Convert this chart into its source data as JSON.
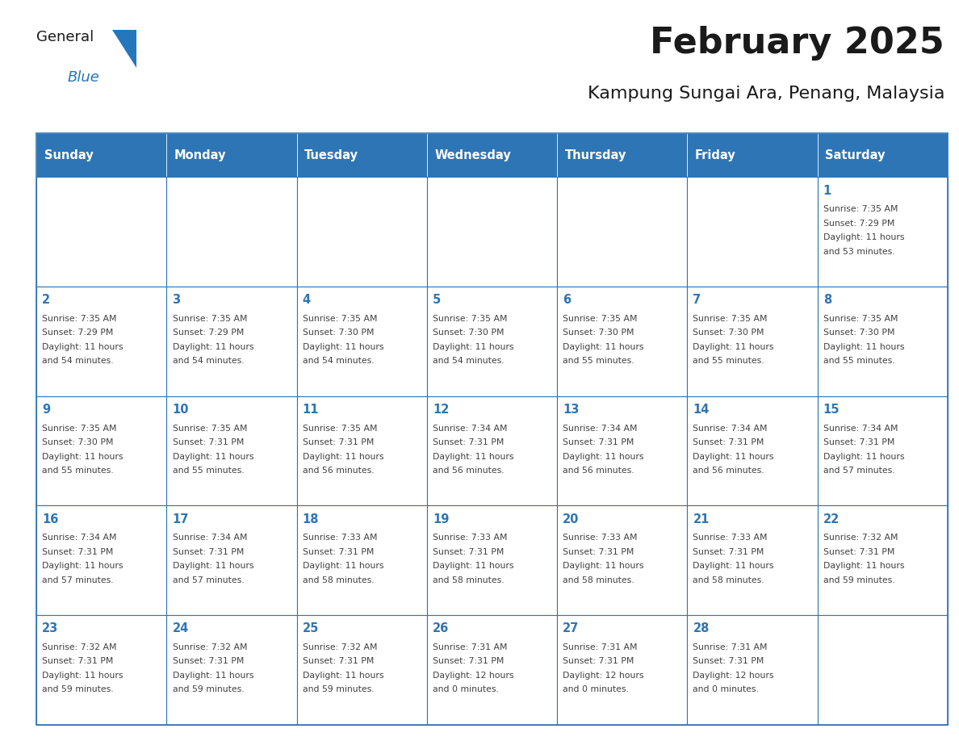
{
  "title": "February 2025",
  "subtitle": "Kampung Sungai Ara, Penang, Malaysia",
  "title_fontsize": 32,
  "subtitle_fontsize": 16,
  "header_bg_color": "#2E75B6",
  "header_text_color": "#FFFFFF",
  "cell_border_color": "#2E75B6",
  "day_number_color": "#2E75B6",
  "detail_text_color": "#404040",
  "days_of_week": [
    "Sunday",
    "Monday",
    "Tuesday",
    "Wednesday",
    "Thursday",
    "Friday",
    "Saturday"
  ],
  "logo_general_color": "#1a1a1a",
  "logo_blue_color": "#2477BD",
  "weeks": [
    [
      {
        "day": "",
        "sunrise": "",
        "sunset": "",
        "daylight1": "",
        "daylight2": ""
      },
      {
        "day": "",
        "sunrise": "",
        "sunset": "",
        "daylight1": "",
        "daylight2": ""
      },
      {
        "day": "",
        "sunrise": "",
        "sunset": "",
        "daylight1": "",
        "daylight2": ""
      },
      {
        "day": "",
        "sunrise": "",
        "sunset": "",
        "daylight1": "",
        "daylight2": ""
      },
      {
        "day": "",
        "sunrise": "",
        "sunset": "",
        "daylight1": "",
        "daylight2": ""
      },
      {
        "day": "",
        "sunrise": "",
        "sunset": "",
        "daylight1": "",
        "daylight2": ""
      },
      {
        "day": "1",
        "sunrise": "7:35 AM",
        "sunset": "7:29 PM",
        "daylight1": "11 hours",
        "daylight2": "and 53 minutes."
      }
    ],
    [
      {
        "day": "2",
        "sunrise": "7:35 AM",
        "sunset": "7:29 PM",
        "daylight1": "11 hours",
        "daylight2": "and 54 minutes."
      },
      {
        "day": "3",
        "sunrise": "7:35 AM",
        "sunset": "7:29 PM",
        "daylight1": "11 hours",
        "daylight2": "and 54 minutes."
      },
      {
        "day": "4",
        "sunrise": "7:35 AM",
        "sunset": "7:30 PM",
        "daylight1": "11 hours",
        "daylight2": "and 54 minutes."
      },
      {
        "day": "5",
        "sunrise": "7:35 AM",
        "sunset": "7:30 PM",
        "daylight1": "11 hours",
        "daylight2": "and 54 minutes."
      },
      {
        "day": "6",
        "sunrise": "7:35 AM",
        "sunset": "7:30 PM",
        "daylight1": "11 hours",
        "daylight2": "and 55 minutes."
      },
      {
        "day": "7",
        "sunrise": "7:35 AM",
        "sunset": "7:30 PM",
        "daylight1": "11 hours",
        "daylight2": "and 55 minutes."
      },
      {
        "day": "8",
        "sunrise": "7:35 AM",
        "sunset": "7:30 PM",
        "daylight1": "11 hours",
        "daylight2": "and 55 minutes."
      }
    ],
    [
      {
        "day": "9",
        "sunrise": "7:35 AM",
        "sunset": "7:30 PM",
        "daylight1": "11 hours",
        "daylight2": "and 55 minutes."
      },
      {
        "day": "10",
        "sunrise": "7:35 AM",
        "sunset": "7:31 PM",
        "daylight1": "11 hours",
        "daylight2": "and 55 minutes."
      },
      {
        "day": "11",
        "sunrise": "7:35 AM",
        "sunset": "7:31 PM",
        "daylight1": "11 hours",
        "daylight2": "and 56 minutes."
      },
      {
        "day": "12",
        "sunrise": "7:34 AM",
        "sunset": "7:31 PM",
        "daylight1": "11 hours",
        "daylight2": "and 56 minutes."
      },
      {
        "day": "13",
        "sunrise": "7:34 AM",
        "sunset": "7:31 PM",
        "daylight1": "11 hours",
        "daylight2": "and 56 minutes."
      },
      {
        "day": "14",
        "sunrise": "7:34 AM",
        "sunset": "7:31 PM",
        "daylight1": "11 hours",
        "daylight2": "and 56 minutes."
      },
      {
        "day": "15",
        "sunrise": "7:34 AM",
        "sunset": "7:31 PM",
        "daylight1": "11 hours",
        "daylight2": "and 57 minutes."
      }
    ],
    [
      {
        "day": "16",
        "sunrise": "7:34 AM",
        "sunset": "7:31 PM",
        "daylight1": "11 hours",
        "daylight2": "and 57 minutes."
      },
      {
        "day": "17",
        "sunrise": "7:34 AM",
        "sunset": "7:31 PM",
        "daylight1": "11 hours",
        "daylight2": "and 57 minutes."
      },
      {
        "day": "18",
        "sunrise": "7:33 AM",
        "sunset": "7:31 PM",
        "daylight1": "11 hours",
        "daylight2": "and 58 minutes."
      },
      {
        "day": "19",
        "sunrise": "7:33 AM",
        "sunset": "7:31 PM",
        "daylight1": "11 hours",
        "daylight2": "and 58 minutes."
      },
      {
        "day": "20",
        "sunrise": "7:33 AM",
        "sunset": "7:31 PM",
        "daylight1": "11 hours",
        "daylight2": "and 58 minutes."
      },
      {
        "day": "21",
        "sunrise": "7:33 AM",
        "sunset": "7:31 PM",
        "daylight1": "11 hours",
        "daylight2": "and 58 minutes."
      },
      {
        "day": "22",
        "sunrise": "7:32 AM",
        "sunset": "7:31 PM",
        "daylight1": "11 hours",
        "daylight2": "and 59 minutes."
      }
    ],
    [
      {
        "day": "23",
        "sunrise": "7:32 AM",
        "sunset": "7:31 PM",
        "daylight1": "11 hours",
        "daylight2": "and 59 minutes."
      },
      {
        "day": "24",
        "sunrise": "7:32 AM",
        "sunset": "7:31 PM",
        "daylight1": "11 hours",
        "daylight2": "and 59 minutes."
      },
      {
        "day": "25",
        "sunrise": "7:32 AM",
        "sunset": "7:31 PM",
        "daylight1": "11 hours",
        "daylight2": "and 59 minutes."
      },
      {
        "day": "26",
        "sunrise": "7:31 AM",
        "sunset": "7:31 PM",
        "daylight1": "12 hours",
        "daylight2": "and 0 minutes."
      },
      {
        "day": "27",
        "sunrise": "7:31 AM",
        "sunset": "7:31 PM",
        "daylight1": "12 hours",
        "daylight2": "and 0 minutes."
      },
      {
        "day": "28",
        "sunrise": "7:31 AM",
        "sunset": "7:31 PM",
        "daylight1": "12 hours",
        "daylight2": "and 0 minutes."
      },
      {
        "day": "",
        "sunrise": "",
        "sunset": "",
        "daylight1": "",
        "daylight2": ""
      }
    ]
  ]
}
